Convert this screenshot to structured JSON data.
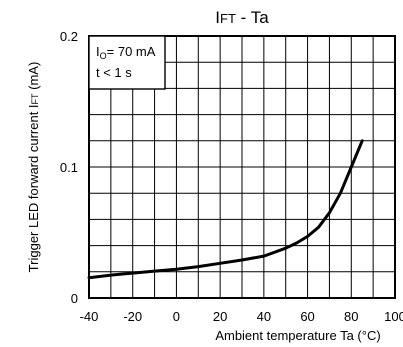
{
  "chart_data": {
    "type": "line",
    "title": "IFT - Ta",
    "xlabel": "Ambient temperature Ta (°C)",
    "ylabel": "Trigger LED forward current IFT (mA)",
    "xlim": [
      -40,
      100
    ],
    "ylim": [
      0,
      0.2
    ],
    "x_ticks": [
      "-40",
      "-20",
      "0",
      "20",
      "40",
      "60",
      "80",
      "100"
    ],
    "y_ticks": [
      "0",
      "0.1",
      "0.2"
    ],
    "x_grid_step": 10,
    "y_grid_step": 0.02,
    "grid": true,
    "annotation_lines": [
      "IO= 70 mA",
      "t < 1 s"
    ],
    "series": [
      {
        "x": [
          -40,
          -30,
          -20,
          -10,
          0,
          10,
          20,
          30,
          40,
          50,
          55,
          60,
          65,
          70,
          75,
          80,
          85
        ],
        "y": [
          0.0155,
          0.0175,
          0.019,
          0.0205,
          0.022,
          0.024,
          0.0265,
          0.029,
          0.032,
          0.038,
          0.042,
          0.047,
          0.054,
          0.065,
          0.08,
          0.1,
          0.12
        ]
      }
    ]
  }
}
